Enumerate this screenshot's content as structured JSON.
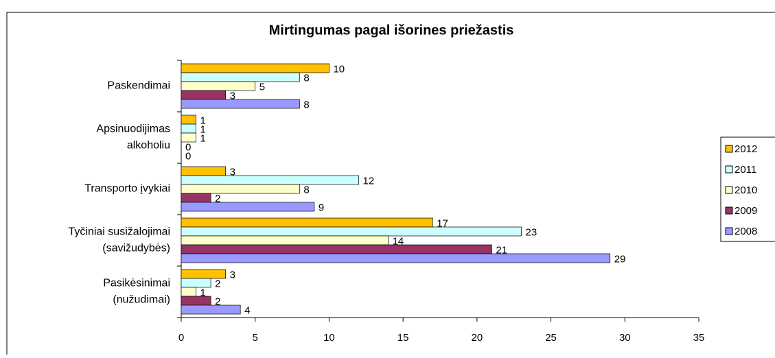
{
  "chart_data": {
    "type": "bar",
    "orientation": "horizontal",
    "title": "Mirtingumas pagal išorines priežastis",
    "categories": [
      [
        "Paskendimai"
      ],
      [
        "Apsinuodijimas",
        "alkoholiu"
      ],
      [
        "Transporto įvykiai"
      ],
      [
        "Tyčiniai susižalojimai",
        "(savižudybės)"
      ],
      [
        "Pasikėsinimai",
        "(nužudimai)"
      ]
    ],
    "series": [
      {
        "name": "2012",
        "color": "#ffc000",
        "values": [
          10,
          1,
          3,
          17,
          3
        ]
      },
      {
        "name": "2011",
        "color": "#ccffff",
        "values": [
          8,
          1,
          12,
          23,
          2
        ]
      },
      {
        "name": "2010",
        "color": "#ffffcc",
        "values": [
          5,
          1,
          8,
          14,
          1
        ]
      },
      {
        "name": "2009",
        "color": "#993366",
        "values": [
          3,
          0,
          2,
          21,
          2
        ]
      },
      {
        "name": "2008",
        "color": "#9999ff",
        "values": [
          8,
          0,
          9,
          29,
          4
        ]
      }
    ],
    "xlim": [
      0,
      35
    ],
    "xticks": [
      0,
      5,
      10,
      15,
      20,
      25,
      30,
      35
    ],
    "grid": false,
    "legend": "right"
  }
}
